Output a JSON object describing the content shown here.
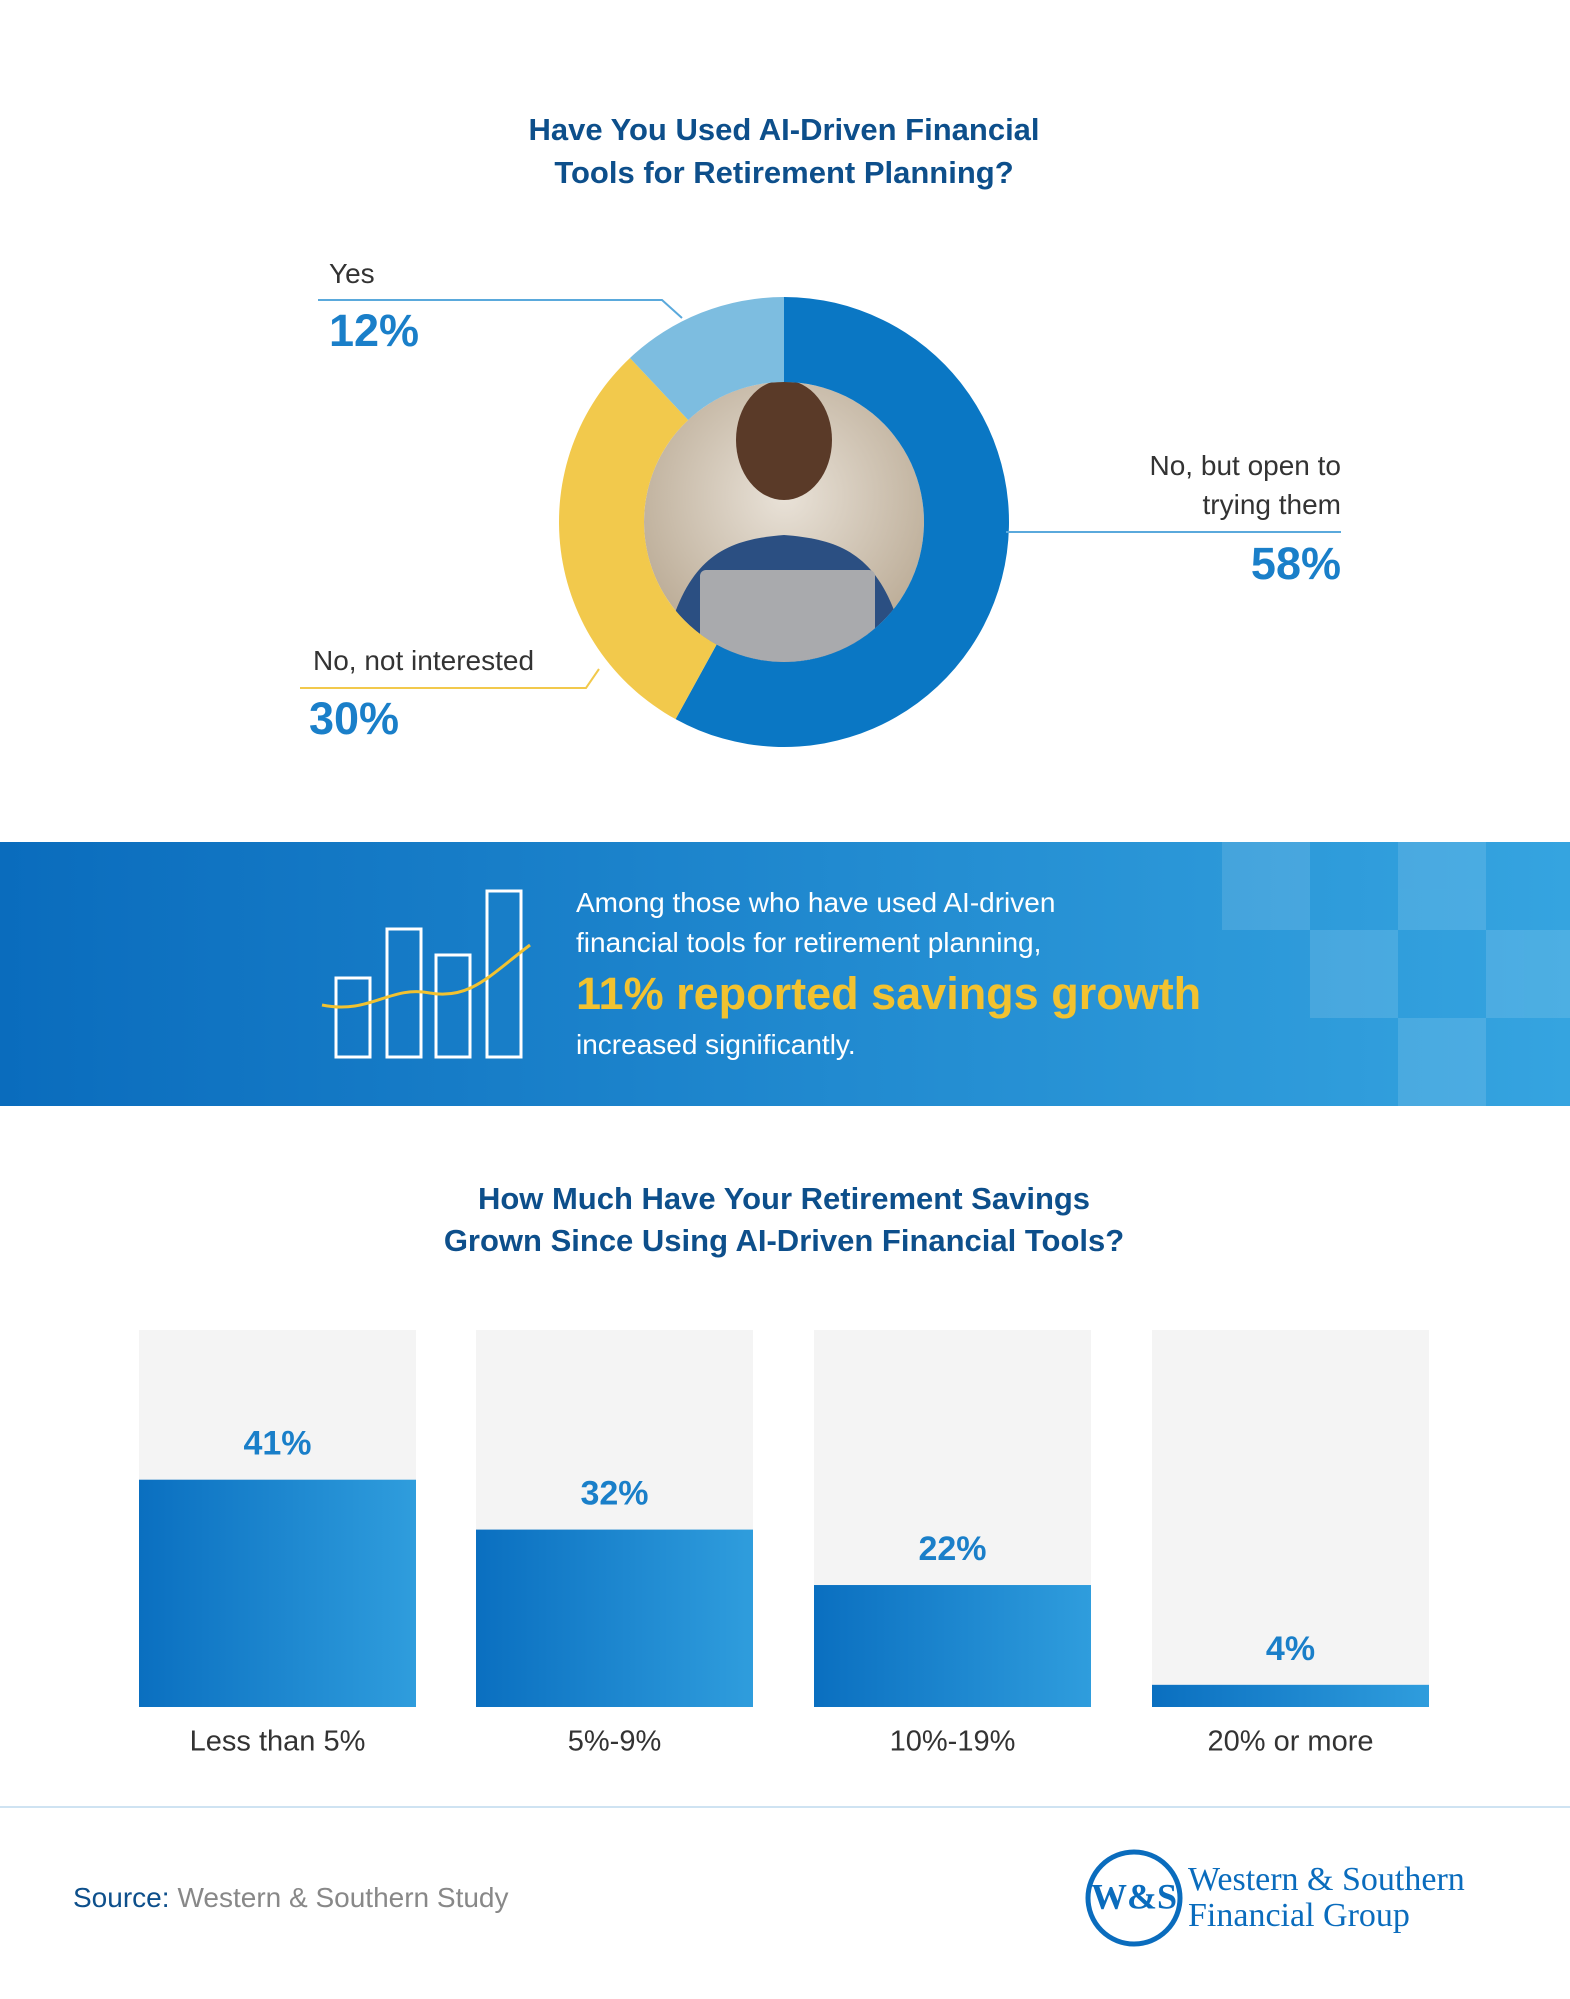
{
  "chart_data": [
    {
      "type": "donut",
      "title": [
        "Have You Used AI-Driven Financial",
        "Tools for Retirement Planning?"
      ],
      "categories": [
        "No, but open to trying them",
        "No, not interested",
        "Yes"
      ],
      "values": [
        58,
        30,
        12
      ],
      "value_labels": [
        "58%",
        "30%",
        "12%"
      ],
      "colors": [
        "#0a77c4",
        "#f2c94c",
        "#7dbde0"
      ]
    },
    {
      "type": "bar",
      "title": [
        "How Much Have Your Retirement Savings",
        "Grown Since Using AI-Driven Financial Tools?"
      ],
      "categories": [
        "Less than 5%",
        "5%-9%",
        "10%-19%",
        "20% or more"
      ],
      "values": [
        41,
        32,
        22,
        4
      ],
      "value_labels": [
        "41%",
        "32%",
        "22%",
        "4%"
      ],
      "ylim": [
        0,
        68
      ],
      "color": "#0a77c4"
    }
  ],
  "callout": {
    "text": "Among those who have used AI-driven financial tools for retirement planning,",
    "highlight": "11% reported savings growth",
    "text_after": "increased significantly."
  },
  "source": {
    "label": "Source:",
    "text": "Western & Southern Study"
  },
  "logo": {
    "mark": "W&S",
    "lines": [
      "Western & Southern",
      "Financial Group"
    ]
  }
}
